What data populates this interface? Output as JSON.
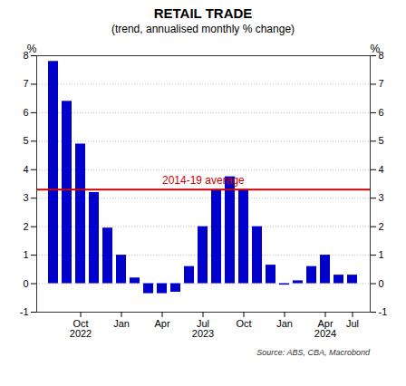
{
  "chart_data": {
    "type": "bar",
    "title": "RETAIL TRADE",
    "subtitle": "(trend, annualised monthly % change)",
    "ylabel": "%",
    "y2label": "%",
    "categories": [
      null,
      null,
      "Oct\n2022",
      null,
      null,
      "Jan",
      null,
      null,
      "Apr",
      null,
      null,
      "Jul\n2023",
      null,
      null,
      "Oct",
      null,
      null,
      "Jan",
      null,
      null,
      "Apr\n2024",
      null,
      "Jul"
    ],
    "values": [
      7.8,
      6.4,
      4.9,
      3.2,
      1.95,
      1.0,
      0.2,
      -0.35,
      -0.35,
      -0.3,
      0.6,
      2.0,
      3.3,
      3.75,
      3.3,
      2.0,
      0.65,
      -0.05,
      0.1,
      0.6,
      1.0,
      0.3,
      0.3
    ],
    "color": "#0000CC",
    "ylim": [
      -1,
      8
    ],
    "yticks": [
      -1,
      0,
      1,
      2,
      3,
      4,
      5,
      6,
      7,
      8
    ],
    "y2lim": [
      -1,
      8
    ],
    "y2ticks": [
      -1,
      0,
      1,
      2,
      3,
      4,
      5,
      6,
      7,
      8
    ],
    "grid": true,
    "reference_line": {
      "label": "2014-19 average",
      "value": 3.3,
      "color": "#CC0000"
    },
    "source": "Source: ABS, CBA, Macrobond"
  }
}
